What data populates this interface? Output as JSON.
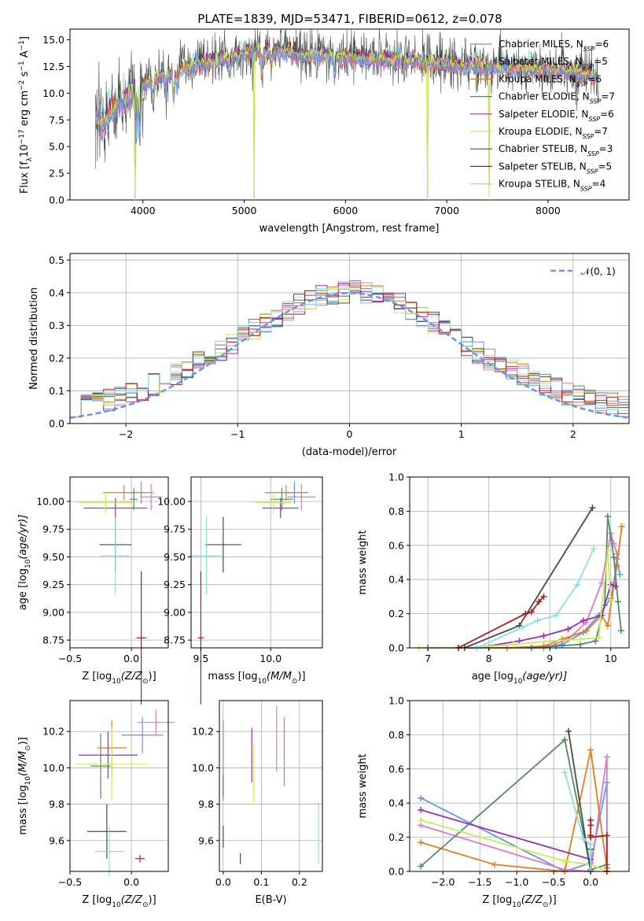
{
  "title": "PLATE=1839, MJD=53471, FIBERID=0612, z=0.078",
  "series": [
    {
      "name": "Chabrier MILES",
      "legend_sub": "N",
      "legend_n": "SSP",
      "legend_val": "=6",
      "color": "#6495ed"
    },
    {
      "name": "Salpeter MILES",
      "legend_sub": "N",
      "legend_n": "SSP",
      "legend_val": "=5",
      "color": "#e377c2"
    },
    {
      "name": "Kroupa MILES",
      "legend_sub": "N",
      "legend_n": "SSP",
      "legend_val": "=6",
      "color": "#e87b1e"
    },
    {
      "name": "Chabrier ELODIE",
      "legend_sub": "N",
      "legend_n": "SSP",
      "legend_val": "=7",
      "color": "#548a66"
    },
    {
      "name": "Salpeter ELODIE",
      "legend_sub": "N",
      "legend_n": "SSP",
      "legend_val": "=6",
      "color": "#9a2fb5"
    },
    {
      "name": "Kroupa ELODIE",
      "legend_sub": "N",
      "legend_n": "SSP",
      "legend_val": "=7",
      "color": "#c8ec5c"
    },
    {
      "name": "Chabrier STELIB",
      "legend_sub": "N",
      "legend_n": "SSP",
      "legend_val": "=3",
      "color": "#4a4a4a"
    },
    {
      "name": "Salpeter STELIB",
      "legend_sub": "N",
      "legend_n": "SSP",
      "legend_val": "=5",
      "color": "#b01a1a"
    },
    {
      "name": "Kroupa STELIB",
      "legend_sub": "N",
      "legend_n": "SSP",
      "legend_val": "=4",
      "color": "#8fdde6"
    }
  ],
  "chart_data": [
    {
      "type": "line",
      "panel": "spectrum",
      "xlabel": "wavelength [Angstrom, rest frame]",
      "ylabel_parts": [
        "Flux [f",
        "λ",
        "10",
        "−17",
        " erg cm",
        "−2",
        " s",
        "−1",
        " A",
        "−1",
        "]"
      ],
      "xlim": [
        3280,
        8800
      ],
      "ylim": [
        0,
        16
      ],
      "xticks": [
        4000,
        5000,
        6000,
        7000,
        8000
      ],
      "yticks": [
        0.0,
        2.5,
        5.0,
        7.5,
        10.0,
        12.5,
        15.0
      ],
      "continuum_knots": [
        [
          3530,
          7.5
        ],
        [
          3600,
          7.0
        ],
        [
          3700,
          8.6
        ],
        [
          3800,
          9.2
        ],
        [
          3900,
          10.0
        ],
        [
          4000,
          10.7
        ],
        [
          4100,
          11.2
        ],
        [
          4200,
          11.8
        ],
        [
          4300,
          12.0
        ],
        [
          4500,
          12.6
        ],
        [
          4700,
          13.0
        ],
        [
          4900,
          13.5
        ],
        [
          5100,
          13.9
        ],
        [
          5300,
          13.9
        ],
        [
          5500,
          13.7
        ],
        [
          5700,
          13.6
        ],
        [
          5900,
          13.5
        ],
        [
          6100,
          13.3
        ],
        [
          6300,
          13.2
        ],
        [
          6500,
          13.1
        ],
        [
          6700,
          13.0
        ],
        [
          6900,
          12.8
        ],
        [
          7100,
          12.6
        ],
        [
          7300,
          12.5
        ],
        [
          7500,
          12.5
        ],
        [
          7700,
          12.3
        ],
        [
          7900,
          12.2
        ],
        [
          8100,
          12.1
        ],
        [
          8300,
          11.9
        ],
        [
          8500,
          11.6
        ]
      ],
      "absorption_lines": [
        [
          3934,
          4.5
        ],
        [
          3969,
          4.5
        ],
        [
          4102,
          2.0
        ],
        [
          4227,
          1.5
        ],
        [
          4304,
          2.5
        ],
        [
          4341,
          1.8
        ],
        [
          4861,
          1.5
        ],
        [
          5175,
          2.0
        ],
        [
          5270,
          1.0
        ],
        [
          5893,
          2.0
        ],
        [
          6563,
          1.0
        ],
        [
          8498,
          1.5
        ],
        [
          8542,
          2.5
        ],
        [
          8662,
          2.0
        ]
      ],
      "spikes": [
        [
          3920,
          0.0
        ],
        [
          5095,
          0.0
        ],
        [
          6810,
          0.0
        ],
        [
          7420,
          0.0
        ]
      ]
    },
    {
      "type": "histogram",
      "panel": "residuals",
      "xlabel": "(data-model)/error",
      "ylabel": "Normed distribution",
      "xlim": [
        -2.5,
        2.5
      ],
      "ylim": [
        0,
        0.52
      ],
      "xticks": [
        -2,
        -1,
        0,
        1,
        2
      ],
      "yticks": [
        0.0,
        0.1,
        0.2,
        0.3,
        0.4,
        0.5
      ],
      "bin_edges_start": -2.5,
      "bin_width": 0.1,
      "reference": {
        "label": "𝒩(0, 1)",
        "mu": 0,
        "sigma": 1
      }
    },
    {
      "type": "scatter",
      "panel": "age_vs_Z",
      "xlabel_main": "Z [log",
      "xlabel_tail": "(Z/Z",
      "ylabel_main": "age  [log",
      "ylabel_tail": "(age/yr)]",
      "xlim": [
        -0.5,
        0.3
      ],
      "ylim": [
        8.68,
        10.22
      ],
      "xticks": [
        -0.5,
        0.0
      ],
      "yticks": [
        8.75,
        9.0,
        9.25,
        9.5,
        9.75,
        10.0
      ],
      "points": [
        {
          "x": 0.08,
          "y": 10.08,
          "ex": 0.1,
          "ey": 0.1
        },
        {
          "x": 0.16,
          "y": 10.04,
          "ex": 0.09,
          "ey": 0.12
        },
        {
          "x": -0.06,
          "y": 10.08,
          "ex": 0.17,
          "ey": 0.07
        },
        {
          "x": 0.02,
          "y": 10.02,
          "ex": 0.03,
          "ey": 0.1
        },
        {
          "x": -0.13,
          "y": 9.94,
          "ex": 0.26,
          "ey": 0.09
        },
        {
          "x": -0.21,
          "y": 9.99,
          "ex": 0.22,
          "ey": 0.1
        },
        {
          "x": -0.13,
          "y": 9.61,
          "ex": 0.13,
          "ey": 0.25
        },
        {
          "x": 0.08,
          "y": 8.77,
          "ex": 0.04,
          "ey": 0.6
        },
        {
          "x": -0.13,
          "y": 9.51,
          "ex": 0.12,
          "ey": 0.35
        }
      ]
    },
    {
      "type": "scatter",
      "panel": "age_vs_mass",
      "xlabel_main": "mass [log",
      "xlabel_tail": "(M/M",
      "xlim": [
        9.43,
        10.37
      ],
      "ylim": [
        8.68,
        10.22
      ],
      "xticks": [
        9.5,
        10.0
      ],
      "yticks": [
        8.75,
        9.0,
        9.25,
        9.5,
        9.75,
        10.0
      ],
      "points": [
        {
          "x": 10.17,
          "y": 10.08,
          "ex": 0.1,
          "ey": 0.1
        },
        {
          "x": 10.22,
          "y": 10.04,
          "ex": 0.1,
          "ey": 0.12
        },
        {
          "x": 10.11,
          "y": 10.08,
          "ex": 0.15,
          "ey": 0.07
        },
        {
          "x": 10.08,
          "y": 10.02,
          "ex": 0.08,
          "ey": 0.1
        },
        {
          "x": 10.07,
          "y": 9.94,
          "ex": 0.13,
          "ey": 0.09
        },
        {
          "x": 10.02,
          "y": 9.99,
          "ex": 0.13,
          "ey": 0.1
        },
        {
          "x": 9.66,
          "y": 9.61,
          "ex": 0.13,
          "ey": 0.25
        },
        {
          "x": 9.5,
          "y": 8.77,
          "ex": 0.02,
          "ey": 0.6
        },
        {
          "x": 9.54,
          "y": 9.51,
          "ex": 0.12,
          "ey": 0.35
        }
      ]
    },
    {
      "type": "line",
      "panel": "weight_vs_age",
      "xlabel_main": "age  [log",
      "xlabel_tail": "(age/yr)]",
      "ylabel": "mass weight",
      "xlim": [
        6.7,
        10.3
      ],
      "ylim": [
        0,
        1
      ],
      "xticks": [
        7,
        8,
        9,
        10
      ],
      "yticks": [
        0.0,
        0.2,
        0.4,
        0.6,
        0.8,
        1.0
      ],
      "series_points": [
        [
          [
            8.0,
            0.0
          ],
          [
            8.9,
            0.0
          ],
          [
            9.2,
            0.02
          ],
          [
            9.55,
            0.09
          ],
          [
            9.8,
            0.19
          ],
          [
            10.0,
            0.29
          ],
          [
            10.05,
            0.38
          ],
          [
            10.1,
            0.52
          ],
          [
            10.15,
            0.43
          ]
        ],
        [
          [
            8.7,
            0.0
          ],
          [
            9.0,
            0.01
          ],
          [
            9.3,
            0.05
          ],
          [
            9.6,
            0.15
          ],
          [
            9.85,
            0.38
          ],
          [
            10.0,
            0.67
          ],
          [
            10.05,
            0.61
          ],
          [
            10.1,
            0.55
          ]
        ],
        [
          [
            7.5,
            0.0
          ],
          [
            8.3,
            0.0
          ],
          [
            8.9,
            0.01
          ],
          [
            9.2,
            0.05
          ],
          [
            9.6,
            0.1
          ],
          [
            9.85,
            0.19
          ],
          [
            9.95,
            0.13
          ],
          [
            10.1,
            0.48
          ],
          [
            10.18,
            0.71
          ]
        ],
        [
          [
            8.7,
            0.0
          ],
          [
            9.1,
            0.01
          ],
          [
            9.5,
            0.02
          ],
          [
            9.75,
            0.04
          ],
          [
            9.9,
            0.25
          ],
          [
            9.95,
            0.77
          ],
          [
            10.05,
            0.53
          ],
          [
            10.12,
            0.27
          ],
          [
            10.17,
            0.1
          ]
        ],
        [
          [
            7.0,
            0.0
          ],
          [
            7.8,
            0.0
          ],
          [
            8.5,
            0.04
          ],
          [
            8.9,
            0.07
          ],
          [
            9.3,
            0.11
          ],
          [
            9.55,
            0.16
          ],
          [
            9.85,
            0.19
          ],
          [
            10.0,
            0.37
          ],
          [
            10.08,
            0.36
          ]
        ],
        [
          [
            6.85,
            0.0
          ],
          [
            7.6,
            0.0
          ],
          [
            8.4,
            0.02
          ],
          [
            9.0,
            0.04
          ],
          [
            9.5,
            0.05
          ],
          [
            9.8,
            0.06
          ],
          [
            9.95,
            0.57
          ],
          [
            10.0,
            0.28
          ]
        ],
        [
          [
            7.6,
            0.0
          ],
          [
            8.5,
            0.13
          ],
          [
            9.7,
            0.82
          ]
        ],
        [
          [
            7.5,
            0.0
          ],
          [
            8.6,
            0.2
          ],
          [
            8.7,
            0.21
          ],
          [
            8.82,
            0.27
          ],
          [
            8.9,
            0.3
          ]
        ],
        [
          [
            7.8,
            0.0
          ],
          [
            8.55,
            0.12
          ],
          [
            8.8,
            0.16
          ],
          [
            9.1,
            0.19
          ],
          [
            9.45,
            0.37
          ],
          [
            9.72,
            0.58
          ]
        ]
      ]
    },
    {
      "type": "scatter",
      "panel": "mass_vs_Z",
      "xlabel_main": "Z [log",
      "xlabel_tail": "(Z/Z",
      "ylabel_main": "mass [log",
      "ylabel_tail": "(M/M",
      "xlim": [
        -0.5,
        0.3
      ],
      "ylim": [
        9.43,
        10.37
      ],
      "xticks": [
        -0.5,
        0.0
      ],
      "yticks": [
        9.6,
        9.8,
        10.0,
        10.2
      ],
      "points": [
        {
          "x": 0.09,
          "y": 10.18,
          "ex": 0.17,
          "ey": 0.1
        },
        {
          "x": 0.2,
          "y": 10.25,
          "ex": 0.15,
          "ey": 0.07
        },
        {
          "x": -0.16,
          "y": 10.11,
          "ex": 0.12,
          "ey": 0.15
        },
        {
          "x": -0.25,
          "y": 10.01,
          "ex": 0.08,
          "ey": 0.18
        },
        {
          "x": -0.19,
          "y": 10.07,
          "ex": 0.24,
          "ey": 0.13
        },
        {
          "x": -0.16,
          "y": 10.02,
          "ex": 0.29,
          "ey": 0.2
        },
        {
          "x": -0.2,
          "y": 9.65,
          "ex": 0.16,
          "ey": 0.15
        },
        {
          "x": 0.07,
          "y": 9.5,
          "ex": 0.04,
          "ey": 0.02
        },
        {
          "x": -0.18,
          "y": 9.54,
          "ex": 0.12,
          "ey": 0.14
        }
      ]
    },
    {
      "type": "scatter",
      "panel": "mass_vs_EBV",
      "xlabel": "E(B-V)",
      "xlim": [
        -0.01,
        0.26
      ],
      "ylim": [
        9.43,
        10.37
      ],
      "xticks": [
        0.0,
        0.1,
        0.2
      ],
      "yticks": [
        9.6,
        9.8,
        10.0,
        10.2
      ],
      "points": [
        {
          "x": 0.0,
          "y": 10.04,
          "ex": 0.0,
          "ey": 0.22
        },
        {
          "x": 0.14,
          "y": 10.16,
          "ex": 0.0,
          "ey": 0.18
        },
        {
          "x": 0.16,
          "y": 10.09,
          "ex": 0.0,
          "ey": 0.19
        },
        {
          "x": 0.0,
          "y": 9.9,
          "ex": 0.0,
          "ey": 0.06
        },
        {
          "x": 0.075,
          "y": 10.07,
          "ex": 0.0,
          "ey": 0.15
        },
        {
          "x": 0.08,
          "y": 9.97,
          "ex": 0.0,
          "ey": 0.16
        },
        {
          "x": 0.0,
          "y": 9.62,
          "ex": 0.0,
          "ey": 0.06
        },
        {
          "x": 0.045,
          "y": 9.5,
          "ex": 0.0,
          "ey": 0.03
        },
        {
          "x": 0.25,
          "y": 9.64,
          "ex": 0.0,
          "ey": 0.17
        }
      ]
    },
    {
      "type": "line",
      "panel": "weight_vs_Z",
      "xlabel_main": "Z [log",
      "xlabel_tail": "(Z/Z",
      "ylabel": "mass weight",
      "xlim": [
        -2.45,
        0.52
      ],
      "ylim": [
        0,
        1
      ],
      "xticks": [
        -2.0,
        -1.5,
        -1.0,
        -0.5,
        0.0
      ],
      "yticks": [
        0.0,
        0.2,
        0.4,
        0.6,
        0.8,
        1.0
      ],
      "series_points": [
        [
          [
            -2.3,
            0.43
          ],
          [
            -0.35,
            0.0
          ],
          [
            0.0,
            0.05
          ],
          [
            0.22,
            0.52
          ],
          [
            0.22,
            0.02
          ]
        ],
        [
          [
            -2.3,
            0.27
          ],
          [
            -0.35,
            0.01
          ],
          [
            0.0,
            0.0
          ],
          [
            0.22,
            0.67
          ],
          [
            0.22,
            0.0
          ]
        ],
        [
          [
            -2.3,
            0.17
          ],
          [
            -1.3,
            0.04
          ],
          [
            -0.35,
            0.0
          ],
          [
            0.0,
            0.71
          ],
          [
            0.22,
            0.02
          ]
        ],
        [
          [
            -2.3,
            0.03
          ],
          [
            -0.35,
            0.77
          ],
          [
            0.0,
            0.01
          ],
          [
            0.22,
            0.04
          ]
        ],
        [
          [
            -2.3,
            0.36
          ],
          [
            0.0,
            0.07
          ]
        ],
        [
          [
            -2.3,
            0.3
          ],
          [
            -0.35,
            0.06
          ],
          [
            0.0,
            0.04
          ],
          [
            0.22,
            0.0
          ]
        ],
        [
          [
            -0.3,
            0.82
          ],
          [
            0.0,
            0.0
          ],
          [
            0.0,
            0.13
          ]
        ],
        [
          [
            0.0,
            0.3
          ],
          [
            0.0,
            0.27
          ],
          [
            0.0,
            0.21
          ],
          [
            0.0,
            0.2
          ],
          [
            0.22,
            0.21
          ],
          [
            0.22,
            0.0
          ]
        ],
        [
          [
            -0.35,
            0.58
          ],
          [
            -0.1,
            0.19
          ],
          [
            0.0,
            0.16
          ],
          [
            0.0,
            0.12
          ],
          [
            0.0,
            0.0
          ]
        ]
      ]
    }
  ]
}
